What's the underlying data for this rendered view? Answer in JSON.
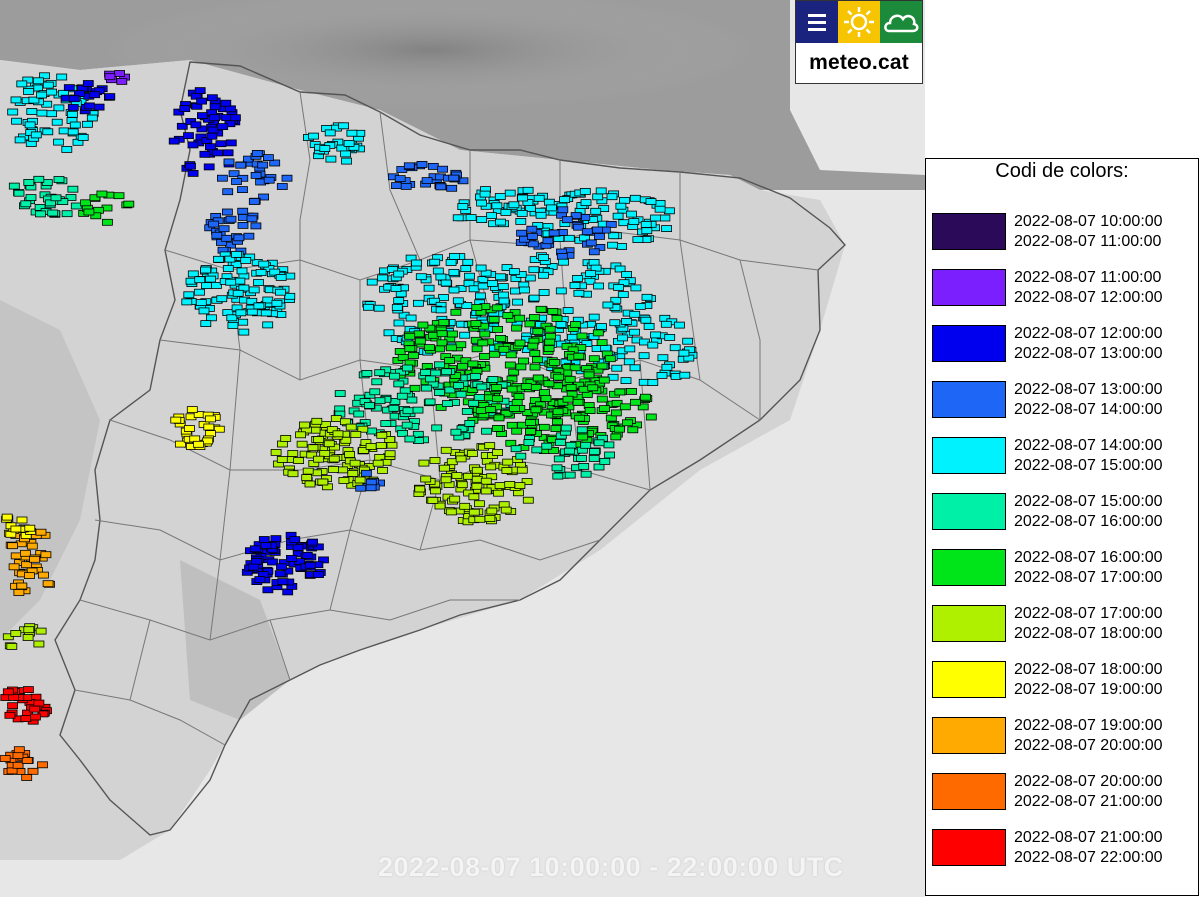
{
  "map": {
    "time_range_label": "2022-08-07 10:00:00 - 22:00:00 UTC"
  },
  "logo": {
    "text": "meteo.cat",
    "colors": {
      "left": "#1a237e",
      "middle": "#f6c400",
      "right": "#1b8a3a"
    },
    "icons": [
      "menu-icon",
      "sun-icon",
      "cloud-icon"
    ]
  },
  "legend": {
    "title": "Codi de colors:",
    "items": [
      {
        "color": "#2c0a5a",
        "from": "2022-08-07 10:00:00",
        "to": "2022-08-07 11:00:00"
      },
      {
        "color": "#7b1fff",
        "from": "2022-08-07 11:00:00",
        "to": "2022-08-07 12:00:00"
      },
      {
        "color": "#0000ee",
        "from": "2022-08-07 12:00:00",
        "to": "2022-08-07 13:00:00"
      },
      {
        "color": "#1e66f5",
        "from": "2022-08-07 13:00:00",
        "to": "2022-08-07 14:00:00"
      },
      {
        "color": "#00f2ff",
        "from": "2022-08-07 14:00:00",
        "to": "2022-08-07 15:00:00"
      },
      {
        "color": "#00f0a8",
        "from": "2022-08-07 15:00:00",
        "to": "2022-08-07 16:00:00"
      },
      {
        "color": "#00e51a",
        "from": "2022-08-07 16:00:00",
        "to": "2022-08-07 17:00:00"
      },
      {
        "color": "#aef000",
        "from": "2022-08-07 17:00:00",
        "to": "2022-08-07 18:00:00"
      },
      {
        "color": "#ffff00",
        "from": "2022-08-07 18:00:00",
        "to": "2022-08-07 19:00:00"
      },
      {
        "color": "#ffaa00",
        "from": "2022-08-07 19:00:00",
        "to": "2022-08-07 20:00:00"
      },
      {
        "color": "#ff6a00",
        "from": "2022-08-07 20:00:00",
        "to": "2022-08-07 21:00:00"
      },
      {
        "color": "#ff0000",
        "from": "2022-08-07 21:00:00",
        "to": "2022-08-07 22:00:00"
      }
    ]
  }
}
